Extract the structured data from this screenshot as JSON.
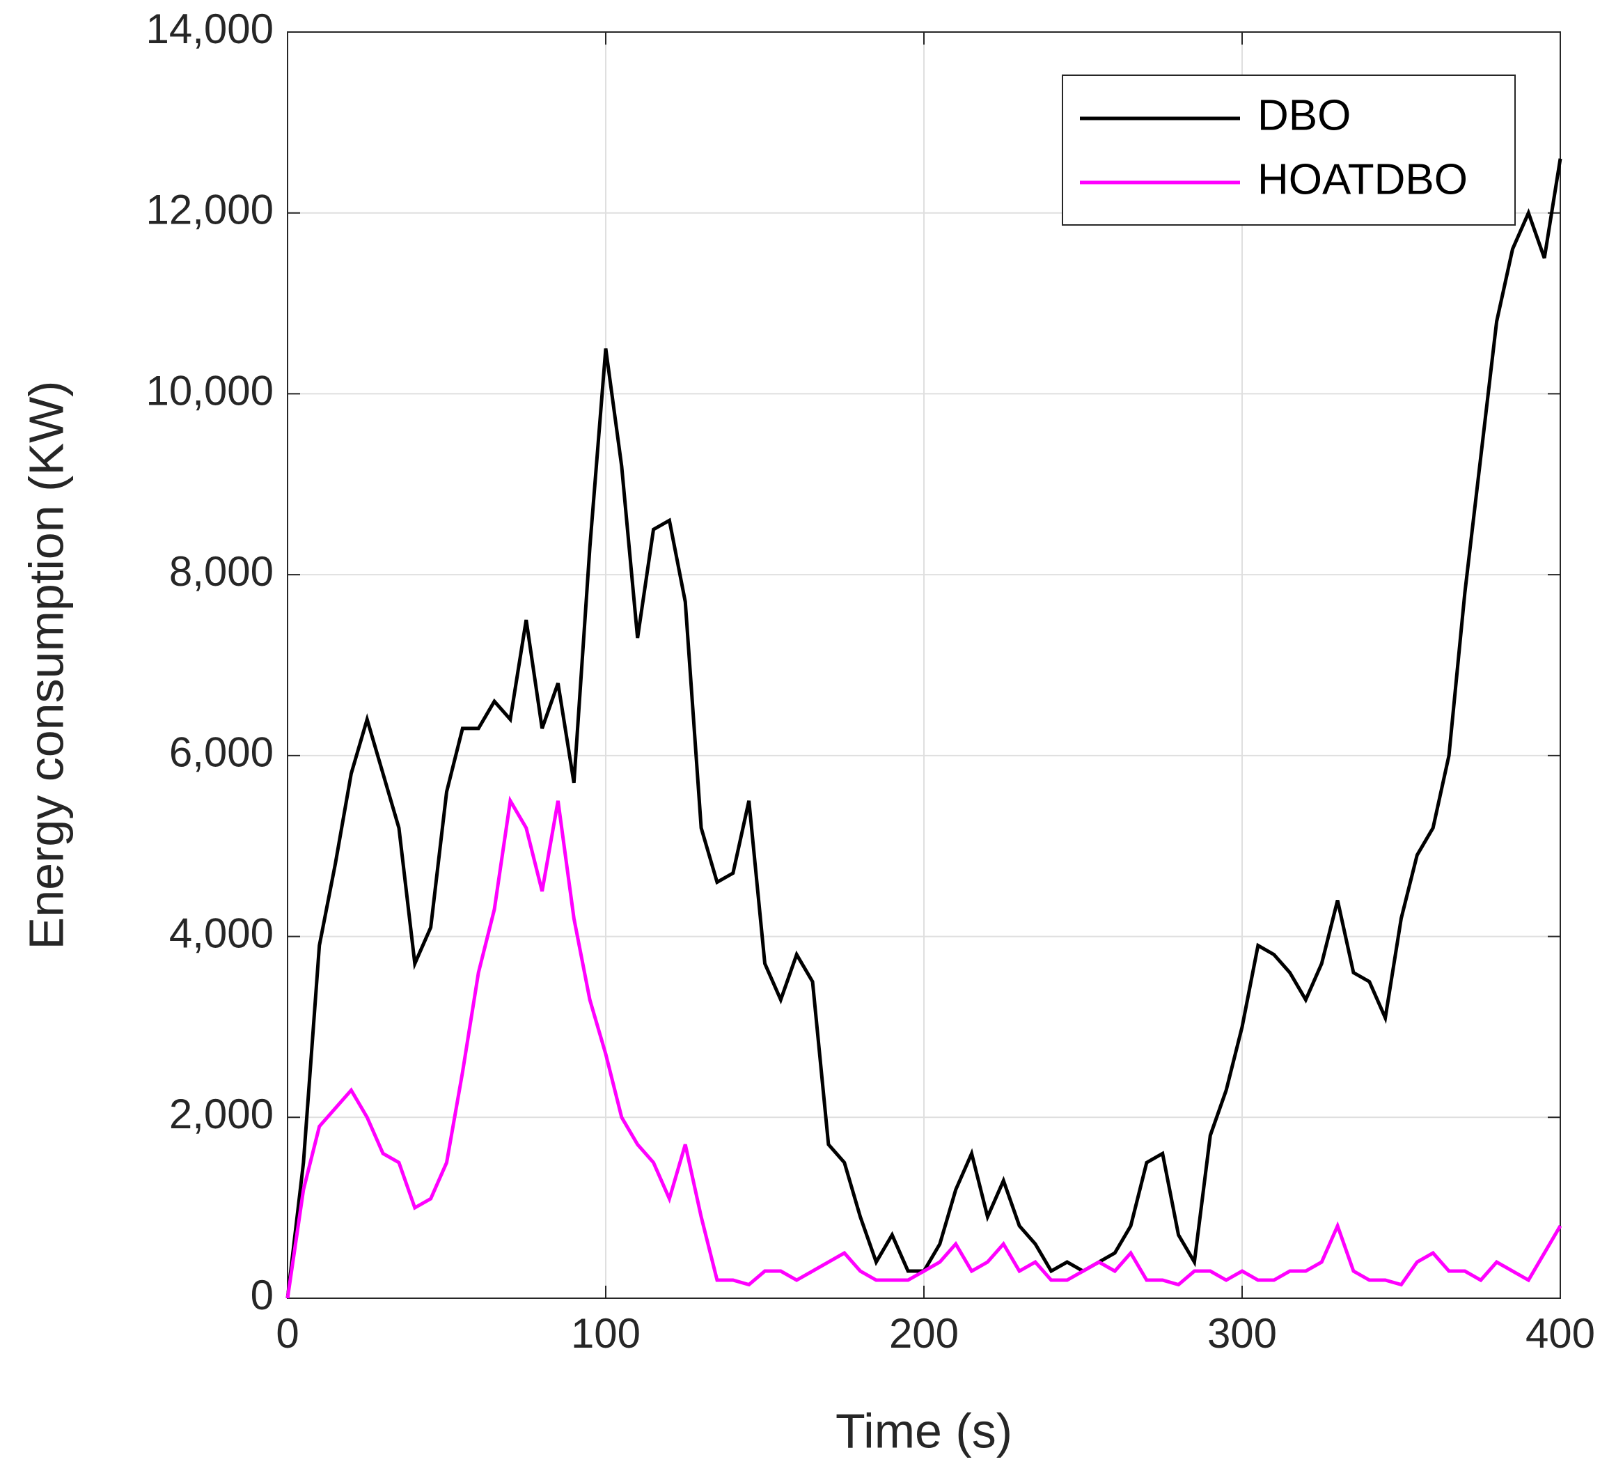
{
  "chart_data": {
    "type": "line",
    "xlabel": "Time (s)",
    "ylabel": "Energy consumption (KW)",
    "x": [
      0,
      5,
      10,
      15,
      20,
      25,
      30,
      35,
      40,
      45,
      50,
      55,
      60,
      65,
      70,
      75,
      80,
      85,
      90,
      95,
      100,
      105,
      110,
      115,
      120,
      125,
      130,
      135,
      140,
      145,
      150,
      155,
      160,
      165,
      170,
      175,
      180,
      185,
      190,
      195,
      200,
      205,
      210,
      215,
      220,
      225,
      230,
      235,
      240,
      245,
      250,
      255,
      260,
      265,
      270,
      275,
      280,
      285,
      290,
      295,
      300,
      305,
      310,
      315,
      320,
      325,
      330,
      335,
      340,
      345,
      350,
      355,
      360,
      365,
      370,
      375,
      380,
      385,
      390,
      395,
      400
    ],
    "series": [
      {
        "name": "DBO",
        "color": "#000000",
        "values": [
          0,
          1500,
          3900,
          4800,
          5800,
          6400,
          5800,
          5200,
          3700,
          4100,
          5600,
          6300,
          6300,
          6600,
          6400,
          7500,
          6300,
          6800,
          5700,
          8300,
          10500,
          9200,
          7300,
          8500,
          8600,
          7700,
          5200,
          4600,
          4700,
          5500,
          3700,
          3300,
          3800,
          3500,
          1700,
          1500,
          900,
          400,
          700,
          300,
          300,
          600,
          1200,
          1600,
          900,
          1300,
          800,
          600,
          300,
          400,
          300,
          400,
          500,
          800,
          1500,
          1600,
          700,
          400,
          1800,
          2300,
          3000,
          3900,
          3800,
          3600,
          3300,
          3700,
          4400,
          3600,
          3500,
          3100,
          4200,
          4900,
          5200,
          6000,
          7800,
          9300,
          10800,
          11600,
          12000,
          11500,
          12600
        ]
      },
      {
        "name": "HOATDBO",
        "color": "#ff00ff",
        "values": [
          0,
          1200,
          1900,
          2100,
          2300,
          2000,
          1600,
          1500,
          1000,
          1100,
          1500,
          2500,
          3600,
          4300,
          5500,
          5200,
          4500,
          5500,
          4200,
          3300,
          2700,
          2000,
          1700,
          1500,
          1100,
          1700,
          900,
          200,
          200,
          150,
          300,
          300,
          200,
          300,
          400,
          500,
          300,
          200,
          200,
          200,
          300,
          400,
          600,
          300,
          400,
          600,
          300,
          400,
          200,
          200,
          300,
          400,
          300,
          500,
          200,
          200,
          150,
          300,
          300,
          200,
          300,
          200,
          200,
          300,
          300,
          400,
          800,
          300,
          200,
          200,
          150,
          400,
          500,
          300,
          300,
          200,
          400,
          300,
          200,
          500,
          800
        ]
      }
    ],
    "xlim": [
      0,
      400
    ],
    "xticks": [
      0,
      100,
      200,
      300,
      400
    ],
    "ylim": [
      0,
      14000
    ],
    "yticks": [
      0,
      {
        "value": 2000,
        "label": "2,000"
      },
      {
        "value": 4000,
        "label": "4,000"
      },
      {
        "value": 6000,
        "label": "6,000"
      },
      {
        "value": 8000,
        "label": "8,000"
      },
      {
        "value": 10000,
        "label": "10,000"
      },
      {
        "value": 12000,
        "label": "12,000"
      },
      {
        "value": 14000,
        "label": "14,000"
      }
    ],
    "grid": true,
    "legend": "upper right"
  }
}
